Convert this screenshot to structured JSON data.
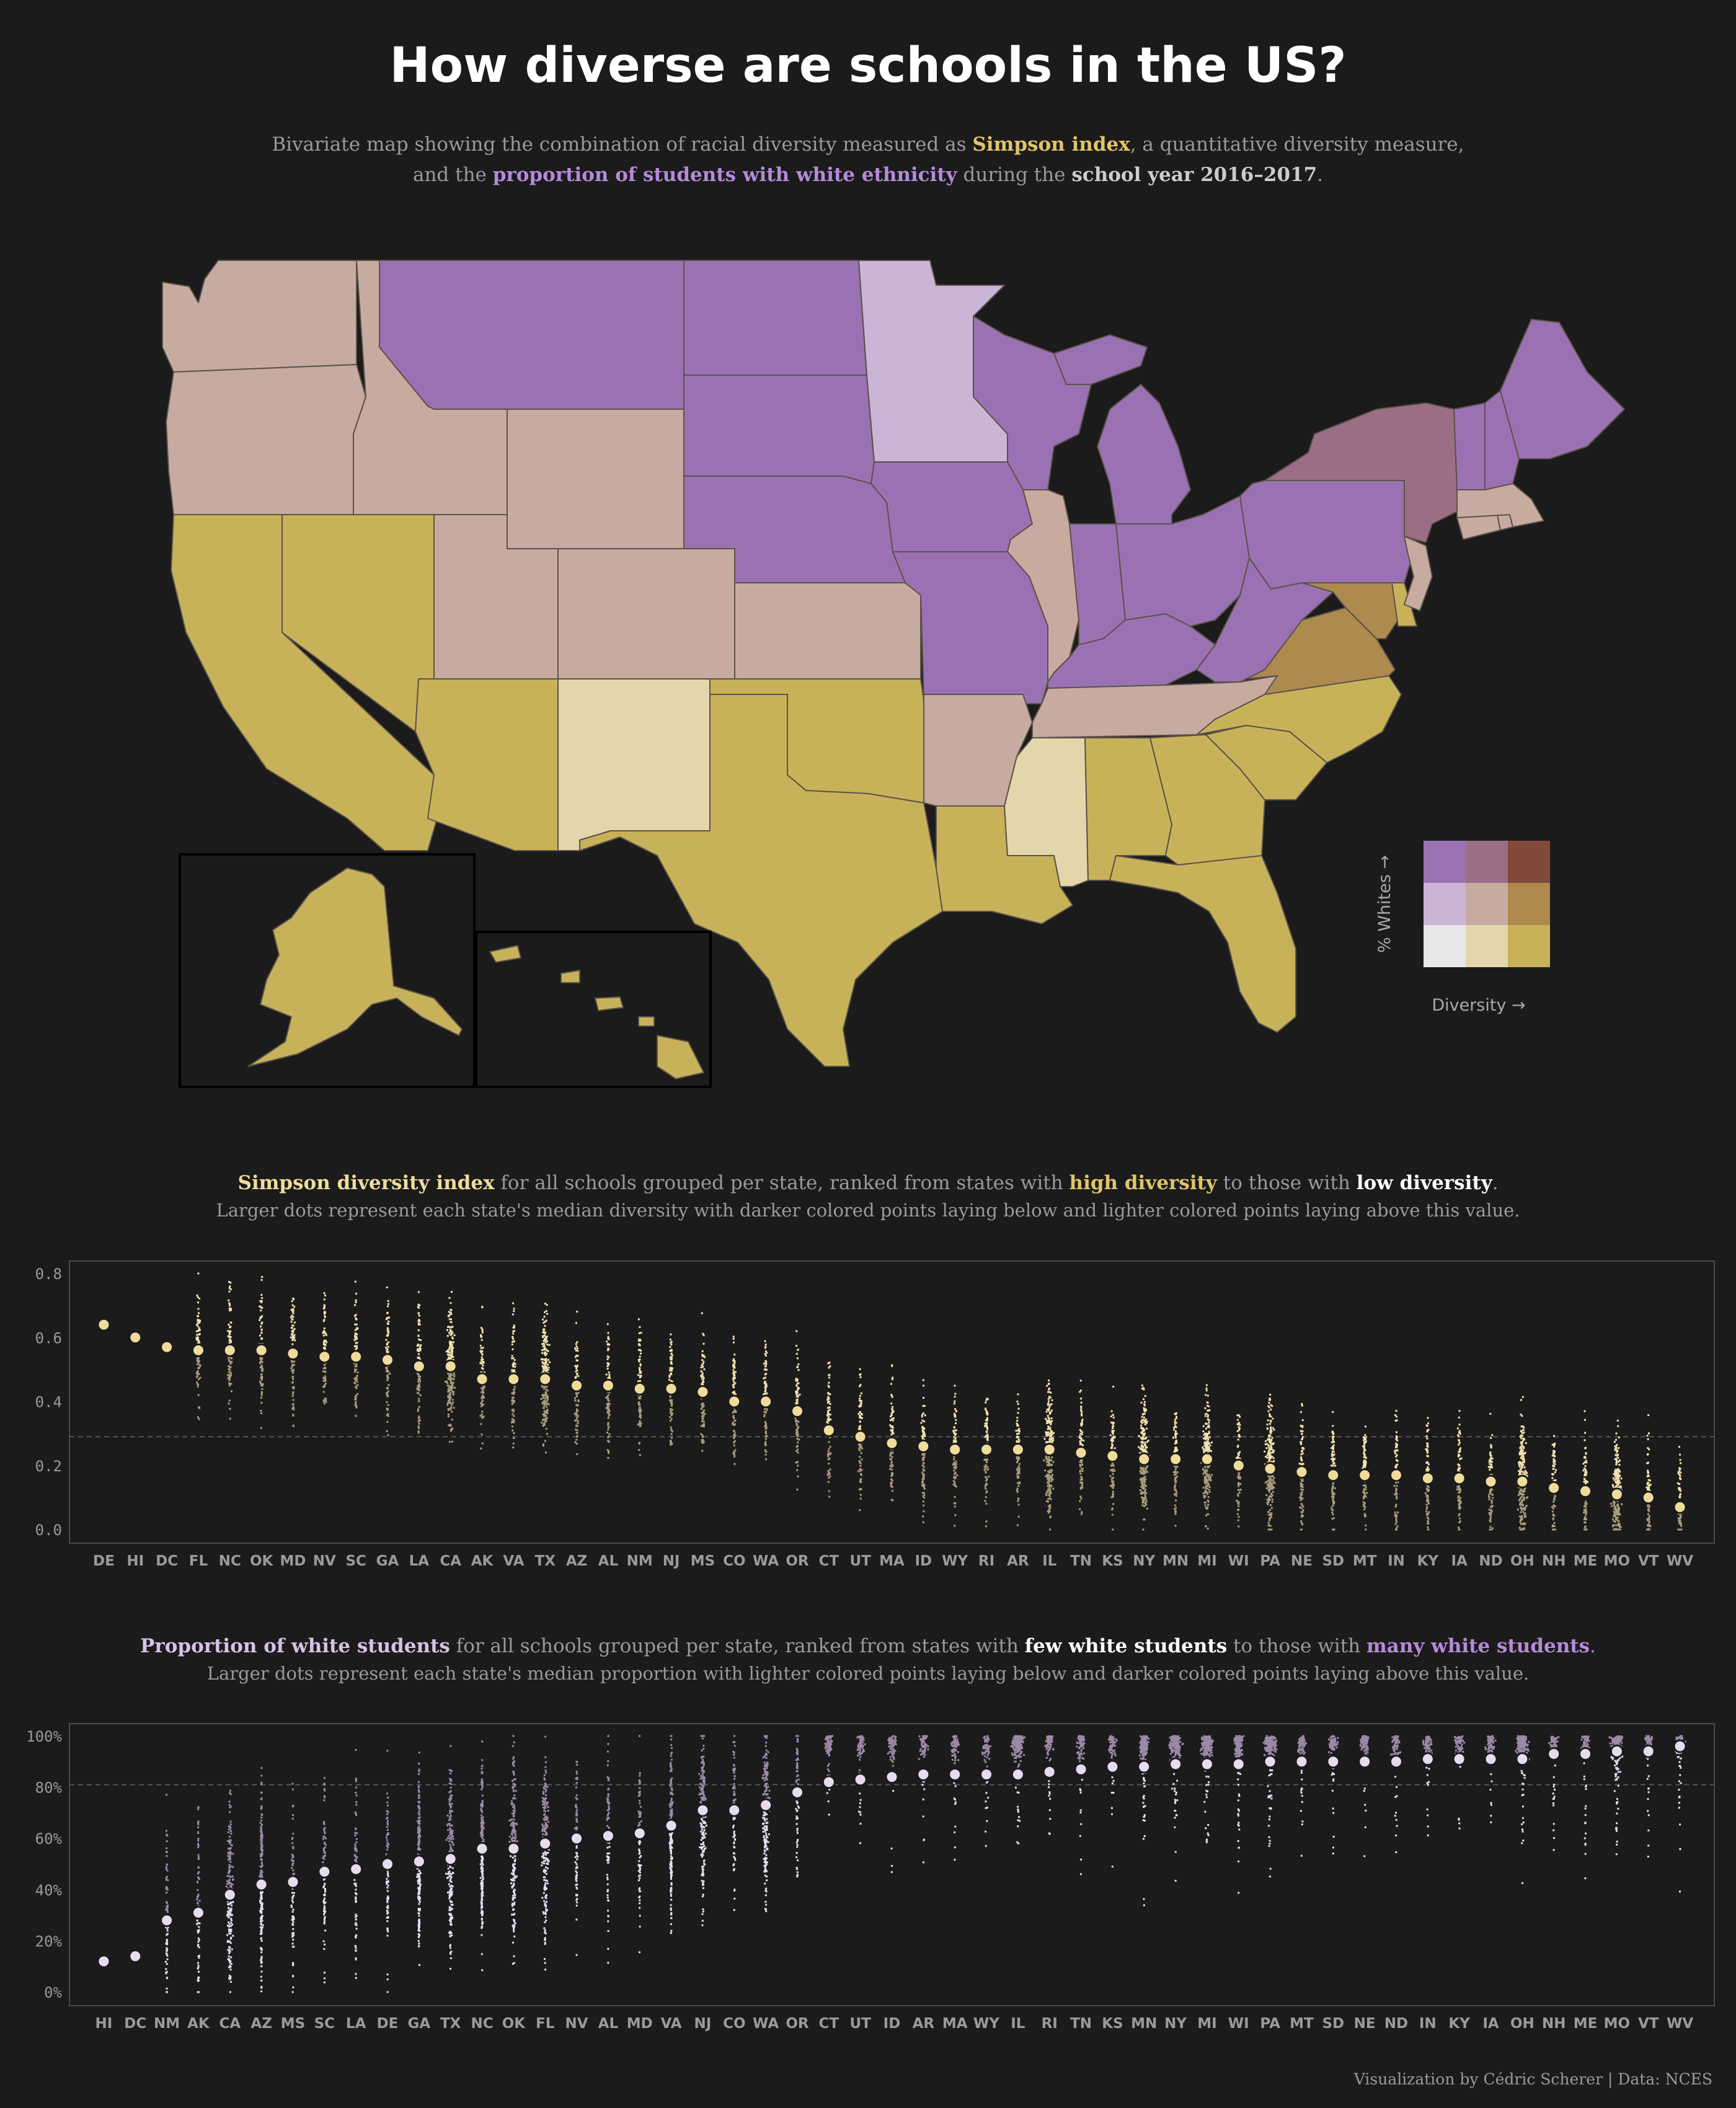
{
  "title": "How diverse are schools in the US?",
  "subtitle": {
    "line1": [
      "Bivariate map showing the combination of racial diversity measured as ",
      "Simpson index",
      ", a quantitative diversity measure,"
    ],
    "line2": [
      "and the ",
      "proportion of students with white ethnicity",
      " during the ",
      "school year 2016–2017",
      "."
    ]
  },
  "colors": {
    "background": "#1b1b1b",
    "gold": "#d9be5c",
    "purple": "#a37bc8",
    "lavender": "#d6c2e6",
    "cream": "#eadba0",
    "text_muted": "#9a9a9a",
    "bivariate_grid": [
      [
        "#9a72b4",
        "#9c6e86",
        "#824a3a"
      ],
      [
        "#cbb5d6",
        "#c8aba0",
        "#ae8a4f"
      ],
      [
        "#e8e8e8",
        "#e4d6ab",
        "#c8b259"
      ]
    ]
  },
  "legend": {
    "y_label": "% Whites →",
    "x_label": "Diversity →"
  },
  "map": {
    "state_colors": {
      "WA": "#c8aba0",
      "OR": "#c8aba0",
      "ID": "#c8aba0",
      "MT": "#9a72b4",
      "WY": "#c8aba0",
      "UT": "#c8aba0",
      "CO": "#c8aba0",
      "NV": "#c8b259",
      "CA": "#c8b259",
      "AZ": "#c8b259",
      "NM": "#e4d6ab",
      "TX": "#c8b259",
      "OK": "#c8b259",
      "KS": "#c8aba0",
      "NE": "#9a72b4",
      "SD": "#9a72b4",
      "ND": "#9a72b4",
      "MN": "#cbb5d6",
      "IA": "#9a72b4",
      "MO": "#9a72b4",
      "AR": "#c8aba0",
      "LA": "#c8b259",
      "MS": "#e4d6ab",
      "AL": "#c8b259",
      "GA": "#c8b259",
      "FL": "#c8b259",
      "SC": "#c8b259",
      "NC": "#c8b259",
      "TN": "#c8aba0",
      "KY": "#9a72b4",
      "IL": "#c8aba0",
      "WI": "#9a72b4",
      "MI": "#9a72b4",
      "IN": "#9a72b4",
      "OH": "#9a72b4",
      "WV": "#9a72b4",
      "VA": "#ae8a4f",
      "MD": "#ae8a4f",
      "DE": "#c8b259",
      "PA": "#9a72b4",
      "NJ": "#c8aba0",
      "NY": "#9c6e86",
      "CT": "#c8aba0",
      "RI": "#c8aba0",
      "MA": "#c8aba0",
      "VT": "#9a72b4",
      "NH": "#9a72b4",
      "ME": "#9a72b4",
      "AK": "#c8b259",
      "HI": "#c8b259"
    }
  },
  "chart_data": [
    {
      "type": "scatter",
      "title_runs": [
        "Simpson diversity index",
        " for all schools grouped per state, ranked from states with ",
        "high diversity",
        " to those with ",
        "low diversity",
        "."
      ],
      "subtitle": "Larger dots represent each state's median diversity with darker colored points laying below and lighter colored points laying above this value.",
      "ylim": [
        0,
        0.8
      ],
      "yticks": [
        0.0,
        0.2,
        0.4,
        0.6,
        0.8
      ],
      "ytick_labels": [
        "0.0",
        "0.2",
        "0.4",
        "0.6",
        "0.8"
      ],
      "reference_line": 0.29,
      "categories": [
        "DE",
        "HI",
        "DC",
        "FL",
        "NC",
        "OK",
        "MD",
        "NV",
        "SC",
        "GA",
        "LA",
        "CA",
        "AK",
        "VA",
        "TX",
        "AZ",
        "AL",
        "NM",
        "NJ",
        "MS",
        "CO",
        "WA",
        "OR",
        "CT",
        "UT",
        "MA",
        "ID",
        "WY",
        "RI",
        "AR",
        "IL",
        "TN",
        "KS",
        "NY",
        "MN",
        "MI",
        "WI",
        "PA",
        "NE",
        "SD",
        "MT",
        "IN",
        "KY",
        "IA",
        "ND",
        "OH",
        "NH",
        "ME",
        "MO",
        "VT",
        "WV"
      ],
      "medians": [
        0.64,
        0.6,
        0.57,
        0.56,
        0.56,
        0.56,
        0.55,
        0.54,
        0.54,
        0.53,
        0.51,
        0.51,
        0.47,
        0.47,
        0.47,
        0.45,
        0.45,
        0.44,
        0.44,
        0.43,
        0.4,
        0.4,
        0.37,
        0.31,
        0.29,
        0.27,
        0.26,
        0.25,
        0.25,
        0.25,
        0.25,
        0.24,
        0.23,
        0.22,
        0.22,
        0.22,
        0.2,
        0.19,
        0.18,
        0.17,
        0.17,
        0.17,
        0.16,
        0.16,
        0.15,
        0.15,
        0.13,
        0.12,
        0.11,
        0.1,
        0.07
      ]
    },
    {
      "type": "scatter",
      "title_runs": [
        "Proportion of white students",
        " for all schools grouped per state, ranked from states with ",
        "few white students",
        " to those with ",
        "many white students",
        "."
      ],
      "subtitle": "Larger dots represent each state's median proportion with lighter colored points laying below and darker colored points laying above this value.",
      "ylim": [
        0,
        100
      ],
      "yticks": [
        0,
        20,
        40,
        60,
        80,
        100
      ],
      "ytick_labels": [
        "0%",
        "20%",
        "40%",
        "60%",
        "80%",
        "100%"
      ],
      "reference_line": 81,
      "categories": [
        "HI",
        "DC",
        "NM",
        "AK",
        "CA",
        "AZ",
        "MS",
        "SC",
        "LA",
        "DE",
        "GA",
        "TX",
        "NC",
        "OK",
        "FL",
        "NV",
        "AL",
        "MD",
        "VA",
        "NJ",
        "CO",
        "WA",
        "OR",
        "CT",
        "UT",
        "ID",
        "AR",
        "MA",
        "WY",
        "IL",
        "RI",
        "TN",
        "KS",
        "MN",
        "NY",
        "MI",
        "WI",
        "PA",
        "MT",
        "SD",
        "NE",
        "ND",
        "IN",
        "KY",
        "IA",
        "OH",
        "NH",
        "ME",
        "MO",
        "VT",
        "WV"
      ],
      "medians": [
        12,
        14,
        28,
        31,
        38,
        42,
        43,
        47,
        48,
        50,
        51,
        52,
        56,
        56,
        58,
        60,
        61,
        62,
        65,
        71,
        71,
        73,
        78,
        82,
        83,
        84,
        85,
        85,
        85,
        85,
        86,
        87,
        88,
        88,
        89,
        89,
        89,
        90,
        90,
        90,
        90,
        90,
        91,
        91,
        91,
        91,
        93,
        93,
        94,
        94,
        96
      ]
    }
  ],
  "credit": "Visualization by Cédric Scherer  |  Data: NCES"
}
